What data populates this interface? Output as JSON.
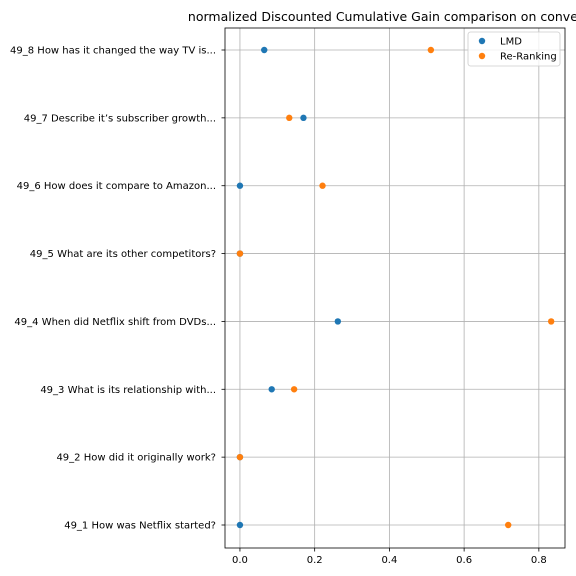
{
  "chart_data": {
    "type": "scatter",
    "title": "normalized Discounted Cumulative Gain comparison on conversat",
    "xlabel": "",
    "ylabel": "",
    "xlim": [
      -0.04,
      0.87
    ],
    "xticks": [
      0.0,
      0.2,
      0.4,
      0.6,
      0.8
    ],
    "xtick_labels": [
      "0.0",
      "0.2",
      "0.4",
      "0.6",
      "0.8"
    ],
    "categories": [
      "49_1 How was Netflix started?",
      "49_2 How did it originally work?",
      "49_3 What is its relationship with...",
      "49_4 When did Netflix shift from DVDs...",
      "49_5 What are its other competitors?",
      "49_6 How does it compare to Amazon...",
      "49_7 Describe it’s subscriber growth...",
      "49_8 How has it changed the way TV is..."
    ],
    "series": [
      {
        "name": "LMD",
        "color": "#1f77b4",
        "values": [
          0.0,
          0.0,
          0.085,
          0.262,
          0.0,
          0.0,
          0.17,
          0.065
        ]
      },
      {
        "name": "Re-Ranking",
        "color": "#ff7f0e",
        "values": [
          0.718,
          0.0,
          0.145,
          0.833,
          0.0,
          0.221,
          0.132,
          0.511
        ]
      }
    ],
    "grid": true,
    "legend_position": "top-right"
  }
}
